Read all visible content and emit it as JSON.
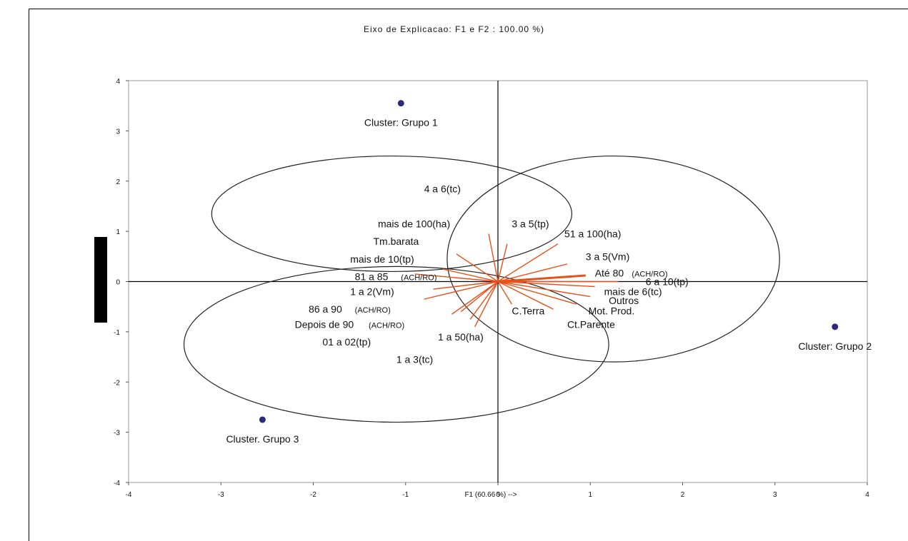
{
  "chart_data": {
    "type": "scatter",
    "title": "Eixo de Explicacao: F1 e F2 : 100.00 %)",
    "xlabel": "F1 (60.66 %) -->",
    "ylabel": "",
    "xlim": [
      -4,
      4
    ],
    "ylim": [
      -4,
      4
    ],
    "x_ticks": [
      "-4",
      "-3",
      "-2",
      "-1",
      "0",
      "1",
      "2",
      "3",
      "4"
    ],
    "y_ticks": [
      "4",
      "3",
      "2",
      "1",
      "0",
      "-1",
      "-2",
      "-3",
      "-4"
    ],
    "grid": false,
    "colors": {
      "vectors": "#e8501a",
      "clusters": "#2e2a7a",
      "axes": "#000000"
    },
    "clusters": [
      {
        "label": "Cluster: Grupo 1",
        "x": -1.05,
        "y": 3.55
      },
      {
        "label": "Cluster: Grupo 2",
        "x": 3.65,
        "y": -0.9
      },
      {
        "label": "Cluster. Grupo 3",
        "x": -2.55,
        "y": -2.75
      }
    ],
    "ellipses": [
      {
        "cx": -1.15,
        "cy": 1.35,
        "rx": 1.95,
        "ry": 1.15
      },
      {
        "cx": 1.25,
        "cy": 0.45,
        "rx": 1.8,
        "ry": 2.05
      },
      {
        "cx": -1.1,
        "cy": -1.25,
        "rx": 2.3,
        "ry": 1.55
      }
    ],
    "variables": [
      {
        "label": "4 a 6(tc)",
        "x": 0.0,
        "y": 0.0,
        "lx": -0.8,
        "ly": 1.85,
        "small": false
      },
      {
        "label": "mais de 100(ha)",
        "x": -0.1,
        "y": 0.95,
        "lx": -1.3,
        "ly": 1.15,
        "small": false
      },
      {
        "label": "3 a 5(tp)",
        "x": 0.1,
        "y": 0.75,
        "lx": 0.15,
        "ly": 1.15,
        "small": false
      },
      {
        "label": "51 a 100(ha)",
        "x": 0.65,
        "y": 0.75,
        "lx": 0.72,
        "ly": 0.95,
        "small": false
      },
      {
        "label": "Tm.barata",
        "x": -0.45,
        "y": 0.55,
        "lx": -1.35,
        "ly": 0.8,
        "small": false
      },
      {
        "label": "3 a 5(Vm)",
        "x": 0.75,
        "y": 0.35,
        "lx": 0.95,
        "ly": 0.5,
        "small": false
      },
      {
        "label": "mais de 10(tp)",
        "x": -0.6,
        "y": 0.25,
        "lx": -1.6,
        "ly": 0.45,
        "small": false
      },
      {
        "label": "81 a 85",
        "x": -0.9,
        "y": 0.15,
        "lx": -1.55,
        "ly": 0.1,
        "small": false
      },
      {
        "label": "(ACH/RO)",
        "x": 0.0,
        "y": 0.0,
        "lx": -1.05,
        "ly": 0.1,
        "small": true
      },
      {
        "label": "Até 80",
        "x": 0.95,
        "y": 0.12,
        "lx": 1.05,
        "ly": 0.17,
        "small": false
      },
      {
        "label": "(ACH/RO)",
        "x": 0.0,
        "y": 0.0,
        "lx": 1.45,
        "ly": 0.17,
        "small": true
      },
      {
        "label": "6 a 10(tp)",
        "x": 1.3,
        "y": 0.0,
        "lx": 1.6,
        "ly": 0.0,
        "small": false
      },
      {
        "label": "mais de 6(tc)",
        "x": 1.05,
        "y": -0.1,
        "lx": 1.15,
        "ly": -0.2,
        "small": false
      },
      {
        "label": "Outros",
        "x": 1.0,
        "y": -0.3,
        "lx": 1.2,
        "ly": -0.38,
        "small": false
      },
      {
        "label": "Mot. Prod.",
        "x": 0.85,
        "y": -0.45,
        "lx": 0.98,
        "ly": -0.58,
        "small": false
      },
      {
        "label": "C.Terra",
        "x": 0.15,
        "y": -0.45,
        "lx": 0.15,
        "ly": -0.58,
        "small": false
      },
      {
        "label": "Ct.Parente",
        "x": 0.6,
        "y": -0.55,
        "lx": 0.75,
        "ly": -0.85,
        "small": false
      },
      {
        "label": "1 a 2(Vm)",
        "x": -0.7,
        "y": -0.15,
        "lx": -1.6,
        "ly": -0.2,
        "small": false
      },
      {
        "label": "86 a 90",
        "x": -0.8,
        "y": -0.35,
        "lx": -2.05,
        "ly": -0.55,
        "small": false
      },
      {
        "label": "(ACH/RO)",
        "x": 0.0,
        "y": 0.0,
        "lx": -1.55,
        "ly": -0.55,
        "small": true
      },
      {
        "label": "Depois de 90",
        "x": -0.5,
        "y": -0.65,
        "lx": -2.2,
        "ly": -0.85,
        "small": false
      },
      {
        "label": "(ACH/RO)",
        "x": 0.0,
        "y": 0.0,
        "lx": -1.4,
        "ly": -0.85,
        "small": true
      },
      {
        "label": "1 a 50(ha)",
        "x": -0.3,
        "y": -0.75,
        "lx": -0.65,
        "ly": -1.1,
        "small": false
      },
      {
        "label": "01 a 02(tp)",
        "x": -0.4,
        "y": -0.6,
        "lx": -1.9,
        "ly": -1.2,
        "small": false
      },
      {
        "label": "1 a 3(tc)",
        "x": -0.25,
        "y": -0.9,
        "lx": -1.1,
        "ly": -1.55,
        "small": false
      }
    ]
  }
}
